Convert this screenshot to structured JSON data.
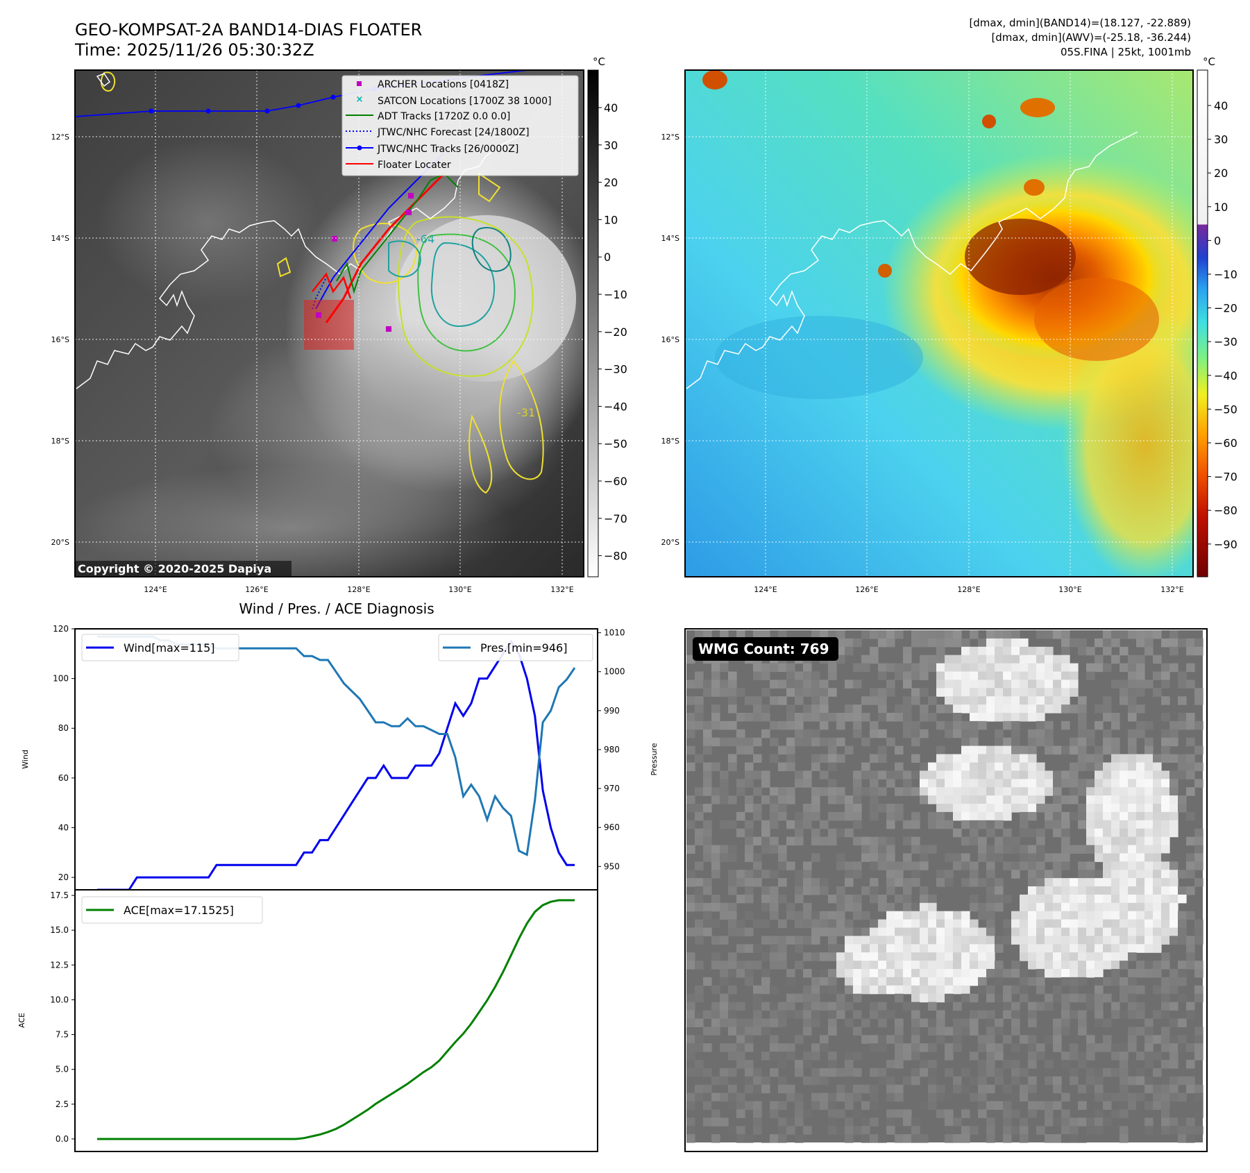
{
  "header": {
    "title_line1": "GEO-KOMPSAT-2A BAND14-DIAS FLOATER",
    "title_line2": "Time: 2025/11/26 05:30:32Z",
    "info_line1": "[dmax, dmin](BAND14)=(18.127, -22.889)",
    "info_line2": "[dmax, dmin](AWV)=(-25.18, -36.244)",
    "info_line3": "05S.FINA | 25kt, 1001mb"
  },
  "map": {
    "lat_ticks": [
      "12°S",
      "14°S",
      "16°S",
      "18°S",
      "20°S"
    ],
    "lon_ticks": [
      "124°E",
      "126°E",
      "128°E",
      "130°E",
      "132°E"
    ],
    "copyright": "Copyright © 2020-2025 Dapiya",
    "contour_labels": [
      "-64",
      "-31"
    ],
    "legend": [
      {
        "label": "ARCHER Locations [0418Z]",
        "color": "#c000c0",
        "marker": "square"
      },
      {
        "label": "SATCON Locations [1700Z 38 1000]",
        "color": "#00b0b0",
        "marker": "x"
      },
      {
        "label": "ADT Tracks [1720Z 0.0 0.0]",
        "color": "#008000",
        "marker": "line"
      },
      {
        "label": "JTWC/NHC Forecast [24/1800Z]",
        "color": "#0000ff",
        "marker": "dotted"
      },
      {
        "label": "JTWC/NHC Tracks [26/0000Z]",
        "color": "#0000ff",
        "marker": "line-dot"
      },
      {
        "label": "Floater Locater",
        "color": "#ff0000",
        "marker": "line"
      }
    ]
  },
  "colorbar_gray": {
    "unit": "°C",
    "ticks": [
      "40",
      "30",
      "20",
      "10",
      "0",
      "−10",
      "−20",
      "−30",
      "−40",
      "−50",
      "−60",
      "−70",
      "−80"
    ]
  },
  "colorbar_color": {
    "unit": "°C",
    "ticks": [
      "40",
      "30",
      "20",
      "10",
      "0",
      "−10",
      "−20",
      "−30",
      "−40",
      "−50",
      "−60",
      "−70",
      "−80",
      "−90"
    ]
  },
  "wmg": {
    "label": "WMG Count: 769"
  },
  "colors": {
    "wind": "#0000ee",
    "pressure": "#1f77b4",
    "ace": "#008000",
    "floater": "#ff0000"
  },
  "chart_data": [
    {
      "type": "line",
      "title": "Wind / Pres. / ACE Diagnosis",
      "ylabel": "Wind",
      "y2label": "Pressure",
      "ylim": [
        15,
        120
      ],
      "y2lim": [
        944,
        1011
      ],
      "yticks": [
        20,
        40,
        60,
        80,
        100,
        120
      ],
      "y2ticks": [
        950,
        960,
        970,
        980,
        990,
        1000,
        1010
      ],
      "series": [
        {
          "name": "Wind[max=115]",
          "axis": "left",
          "values": [
            15,
            15,
            15,
            15,
            15,
            20,
            20,
            20,
            20,
            20,
            20,
            20,
            20,
            20,
            20,
            25,
            25,
            25,
            25,
            25,
            25,
            25,
            25,
            25,
            25,
            25,
            30,
            30,
            35,
            35,
            40,
            45,
            50,
            55,
            60,
            60,
            65,
            60,
            60,
            60,
            65,
            65,
            65,
            70,
            80,
            90,
            85,
            90,
            100,
            100,
            105,
            110,
            115,
            110,
            100,
            85,
            55,
            40,
            30,
            25,
            25
          ]
        },
        {
          "name": "Pres.[min=946]",
          "axis": "right",
          "values": [
            1009,
            1009,
            1009,
            1009,
            1009,
            1009,
            1009,
            1009,
            1008,
            1008,
            1007,
            1007,
            1007,
            1007,
            1007,
            1006,
            1006,
            1006,
            1006,
            1006,
            1006,
            1006,
            1006,
            1006,
            1006,
            1006,
            1004,
            1004,
            1003,
            1003,
            1000,
            997,
            995,
            993,
            990,
            987,
            987,
            986,
            986,
            988,
            986,
            986,
            985,
            984,
            984,
            978,
            968,
            971,
            968,
            962,
            968,
            965,
            963,
            954,
            953,
            967,
            987,
            990,
            996,
            998,
            1001
          ]
        }
      ]
    },
    {
      "type": "line",
      "ylabel": "ACE",
      "ylim": [
        -0.9,
        17.9
      ],
      "yticks": [
        0.0,
        2.5,
        5.0,
        7.5,
        10.0,
        12.5,
        15.0,
        17.5
      ],
      "series": [
        {
          "name": "ACE[max=17.1525]",
          "values": [
            0,
            0,
            0,
            0,
            0,
            0,
            0,
            0,
            0,
            0,
            0,
            0,
            0,
            0,
            0,
            0,
            0,
            0,
            0,
            0,
            0,
            0,
            0,
            0,
            0,
            0,
            0.06,
            0.19,
            0.32,
            0.5,
            0.72,
            1.02,
            1.38,
            1.74,
            2.1,
            2.52,
            2.88,
            3.24,
            3.6,
            3.96,
            4.38,
            4.8,
            5.16,
            5.64,
            6.3,
            6.96,
            7.56,
            8.28,
            9.12,
            9.96,
            10.92,
            12.0,
            13.2,
            14.4,
            15.48,
            16.32,
            16.8,
            17.04,
            17.15,
            17.15,
            17.15
          ]
        }
      ]
    }
  ]
}
